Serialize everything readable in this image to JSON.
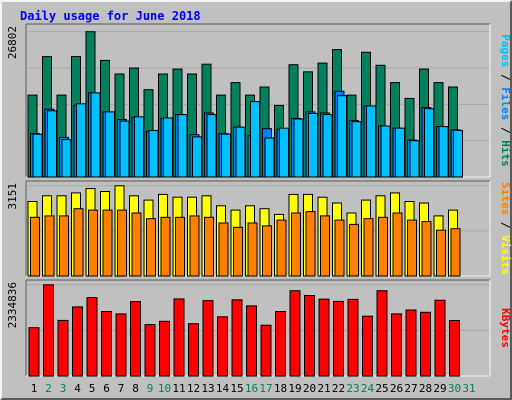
{
  "title": "Daily usage for June 2018",
  "colors": {
    "frame_bg": "#c0c0c0",
    "hits": "#00805c",
    "files": "#0080ff",
    "pages": "#00c0ff",
    "visits": "#ffff00",
    "sites": "#ff8000",
    "kbytes": "#ff0000",
    "weekend_day": "#00805c",
    "weekday": "#000000",
    "title_text": "#0000ff"
  },
  "chart_data": [
    {
      "type": "bar",
      "panel": "hits_files_pages",
      "ylabel_parts": [
        {
          "text": "Pages",
          "color": "#00c0ff"
        },
        {
          "text": " / ",
          "color": "#000000"
        },
        {
          "text": "Files",
          "color": "#0080ff"
        },
        {
          "text": " / ",
          "color": "#000000"
        },
        {
          "text": "Hits",
          "color": "#00805c"
        }
      ],
      "max_label": "26802",
      "ylim": [
        0,
        26802
      ],
      "categories": [
        "1",
        "2",
        "3",
        "4",
        "5",
        "6",
        "7",
        "8",
        "9",
        "10",
        "11",
        "12",
        "13",
        "14",
        "15",
        "16",
        "17",
        "18",
        "19",
        "20",
        "21",
        "22",
        "23",
        "24",
        "25",
        "26",
        "27",
        "28",
        "29",
        "30"
      ],
      "series": [
        {
          "name": "Hits",
          "color": "#00805c",
          "values": [
            15100,
            22200,
            15100,
            22200,
            26800,
            21500,
            19000,
            20100,
            16100,
            19000,
            19900,
            19000,
            20800,
            15100,
            17400,
            15100,
            16600,
            13200,
            20700,
            19400,
            21000,
            23500,
            15100,
            23000,
            20600,
            17400,
            14500,
            19900,
            17400,
            16600
          ]
        },
        {
          "name": "Files",
          "color": "#0080ff",
          "values": [
            8000,
            12500,
            7300,
            13200,
            15500,
            12000,
            10600,
            11000,
            8400,
            10800,
            11500,
            7800,
            11800,
            8000,
            9200,
            7600,
            8900,
            8800,
            10800,
            12000,
            11800,
            15800,
            10400,
            13100,
            9400,
            9000,
            6800,
            12800,
            9300,
            8700
          ]
        },
        {
          "name": "Pages",
          "color": "#00c0ff",
          "values": [
            7900,
            12200,
            6900,
            13500,
            15500,
            12000,
            10300,
            11100,
            8600,
            10900,
            11500,
            7400,
            11500,
            7900,
            9200,
            13900,
            7200,
            9000,
            10700,
            11700,
            11500,
            15000,
            10200,
            13100,
            9400,
            9000,
            6700,
            12600,
            9300,
            8600
          ]
        }
      ]
    },
    {
      "type": "bar",
      "panel": "visits_sites",
      "ylabel_parts": [
        {
          "text": "Sites",
          "color": "#ff8000"
        },
        {
          "text": " / ",
          "color": "#000000"
        },
        {
          "text": "Visits",
          "color": "#ffff00"
        }
      ],
      "max_label": "3151",
      "ylim": [
        0,
        3151
      ],
      "categories": [
        "1",
        "2",
        "3",
        "4",
        "5",
        "6",
        "7",
        "8",
        "9",
        "10",
        "11",
        "12",
        "13",
        "14",
        "15",
        "16",
        "17",
        "18",
        "19",
        "20",
        "21",
        "22",
        "23",
        "24",
        "25",
        "26",
        "27",
        "28",
        "29",
        "30"
      ],
      "series": [
        {
          "name": "Visits",
          "color": "#ffff00",
          "values": [
            2600,
            2800,
            2800,
            2900,
            3050,
            2950,
            3151,
            2800,
            2650,
            2850,
            2750,
            2750,
            2800,
            2450,
            2300,
            2450,
            2350,
            2150,
            2850,
            2850,
            2750,
            2550,
            2200,
            2650,
            2800,
            2900,
            2600,
            2550,
            2100,
            2300
          ]
        },
        {
          "name": "Sites",
          "color": "#ff8000",
          "values": [
            2050,
            2100,
            2100,
            2350,
            2300,
            2300,
            2300,
            2200,
            2000,
            2050,
            2050,
            2100,
            2050,
            1850,
            1700,
            1850,
            1750,
            1950,
            2200,
            2250,
            2100,
            1950,
            1800,
            2000,
            2050,
            2200,
            1950,
            1900,
            1600,
            1650
          ]
        }
      ]
    },
    {
      "type": "bar",
      "panel": "kbytes",
      "ylabel_parts": [
        {
          "text": "KBytes",
          "color": "#ff0000"
        }
      ],
      "max_label": "2334836",
      "ylim": [
        0,
        2334836
      ],
      "categories": [
        "1",
        "2",
        "3",
        "4",
        "5",
        "6",
        "7",
        "8",
        "9",
        "10",
        "11",
        "12",
        "13",
        "14",
        "15",
        "16",
        "17",
        "18",
        "19",
        "20",
        "21",
        "22",
        "23",
        "24",
        "25",
        "26",
        "27",
        "28",
        "29",
        "30"
      ],
      "series": [
        {
          "name": "KBytes",
          "color": "#ff0000",
          "values": [
            1237000,
            2334836,
            1424000,
            1770000,
            2007000,
            1651000,
            1590000,
            1904000,
            1315000,
            1400000,
            1975000,
            1340000,
            1930000,
            1515000,
            1950000,
            1795000,
            1300000,
            1651000,
            2185000,
            2060000,
            1970000,
            1910000,
            1960000,
            1530000,
            2185000,
            1590000,
            1690000,
            1630000,
            1940000,
            1420000
          ]
        }
      ]
    }
  ],
  "x_axis": {
    "labels": [
      "1",
      "2",
      "3",
      "4",
      "5",
      "6",
      "7",
      "8",
      "9",
      "10",
      "11",
      "12",
      "13",
      "14",
      "15",
      "16",
      "17",
      "18",
      "19",
      "20",
      "21",
      "22",
      "23",
      "24",
      "25",
      "26",
      "27",
      "28",
      "29",
      "30",
      "31"
    ],
    "weekend_days": [
      "2",
      "3",
      "9",
      "10",
      "16",
      "17",
      "23",
      "24",
      "30",
      "31"
    ]
  }
}
